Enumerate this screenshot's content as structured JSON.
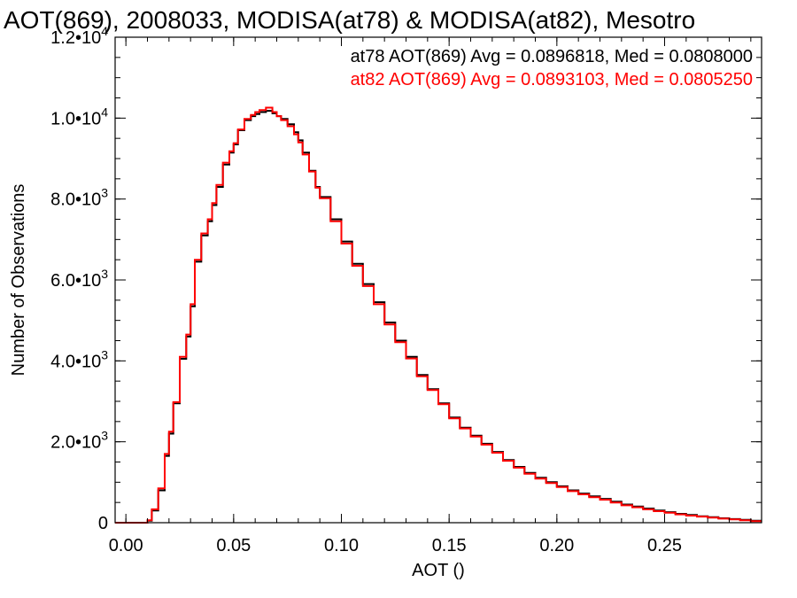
{
  "chart_data": {
    "type": "line",
    "step": true,
    "title": "AOT(869), 2008033, MODISA(at78) & MODISA(at82), Mesotro",
    "xlabel": "AOT ()",
    "ylabel": "Number of Observations",
    "xlim": [
      -0.005,
      0.295
    ],
    "ylim": [
      0,
      12000
    ],
    "x_ticks": [
      0.0,
      0.05,
      0.1,
      0.15,
      0.2,
      0.25
    ],
    "x_tick_labels": [
      "0.00",
      "0.05",
      "0.10",
      "0.15",
      "0.20",
      "0.25"
    ],
    "y_ticks": [
      {
        "value": 0,
        "mant": "0",
        "exp": ""
      },
      {
        "value": 2000,
        "mant": "2.0•10",
        "exp": "3"
      },
      {
        "value": 4000,
        "mant": "4.0•10",
        "exp": "3"
      },
      {
        "value": 6000,
        "mant": "6.0•10",
        "exp": "3"
      },
      {
        "value": 8000,
        "mant": "8.0•10",
        "exp": "3"
      },
      {
        "value": 10000,
        "mant": "1.0•10",
        "exp": "4"
      },
      {
        "value": 12000,
        "mant": "1.2•10",
        "exp": "4"
      }
    ],
    "grid": false,
    "legend_position": "top-right",
    "stats_lines": [
      {
        "text": "at78 AOT(869) Avg = 0.0896818, Med = 0.0808000",
        "color": "#000000"
      },
      {
        "text": "at82 AOT(869) Avg = 0.0893103, Med = 0.0805250",
        "color": "#ff0000"
      }
    ],
    "x": [
      -0.005,
      0.0,
      0.005,
      0.008,
      0.01,
      0.012,
      0.015,
      0.018,
      0.02,
      0.022,
      0.025,
      0.028,
      0.03,
      0.032,
      0.035,
      0.038,
      0.04,
      0.042,
      0.045,
      0.048,
      0.05,
      0.052,
      0.055,
      0.058,
      0.06,
      0.062,
      0.065,
      0.068,
      0.07,
      0.072,
      0.075,
      0.078,
      0.08,
      0.082,
      0.085,
      0.088,
      0.09,
      0.095,
      0.1,
      0.105,
      0.11,
      0.115,
      0.12,
      0.125,
      0.13,
      0.135,
      0.14,
      0.145,
      0.15,
      0.155,
      0.16,
      0.165,
      0.17,
      0.175,
      0.18,
      0.185,
      0.19,
      0.195,
      0.2,
      0.205,
      0.21,
      0.215,
      0.22,
      0.225,
      0.23,
      0.235,
      0.24,
      0.245,
      0.25,
      0.255,
      0.26,
      0.265,
      0.27,
      0.275,
      0.28,
      0.285,
      0.29,
      0.295
    ],
    "series": [
      {
        "color": "#000000",
        "values": [
          0,
          0,
          0,
          0,
          50,
          300,
          800,
          1650,
          2200,
          2950,
          4050,
          4600,
          5350,
          6450,
          7100,
          7450,
          7850,
          8300,
          8850,
          9150,
          9350,
          9700,
          9950,
          10050,
          10100,
          10150,
          10180,
          10120,
          10050,
          9980,
          9850,
          9650,
          9450,
          9150,
          8700,
          8300,
          8050,
          7500,
          6950,
          6400,
          5900,
          5450,
          4950,
          4500,
          4100,
          3650,
          3300,
          2950,
          2600,
          2350,
          2150,
          1950,
          1750,
          1550,
          1380,
          1230,
          1110,
          1000,
          900,
          800,
          720,
          650,
          590,
          520,
          450,
          400,
          350,
          300,
          260,
          220,
          190,
          160,
          135,
          110,
          90,
          70,
          50,
          30
        ]
      },
      {
        "color": "#ff0000",
        "values": [
          0,
          0,
          0,
          0,
          60,
          330,
          850,
          1700,
          2250,
          2980,
          4100,
          4650,
          5400,
          6500,
          7150,
          7500,
          7900,
          8350,
          8900,
          9180,
          9380,
          9720,
          9980,
          10080,
          10150,
          10200,
          10260,
          10150,
          10050,
          9950,
          9800,
          9600,
          9400,
          9100,
          8680,
          8280,
          8020,
          7450,
          6900,
          6350,
          5850,
          5400,
          4900,
          4460,
          4060,
          3620,
          3280,
          2930,
          2580,
          2330,
          2130,
          1930,
          1730,
          1530,
          1360,
          1210,
          1090,
          980,
          880,
          780,
          700,
          630,
          570,
          500,
          430,
          380,
          330,
          285,
          245,
          205,
          175,
          150,
          125,
          100,
          80,
          60,
          40,
          25
        ]
      }
    ]
  }
}
